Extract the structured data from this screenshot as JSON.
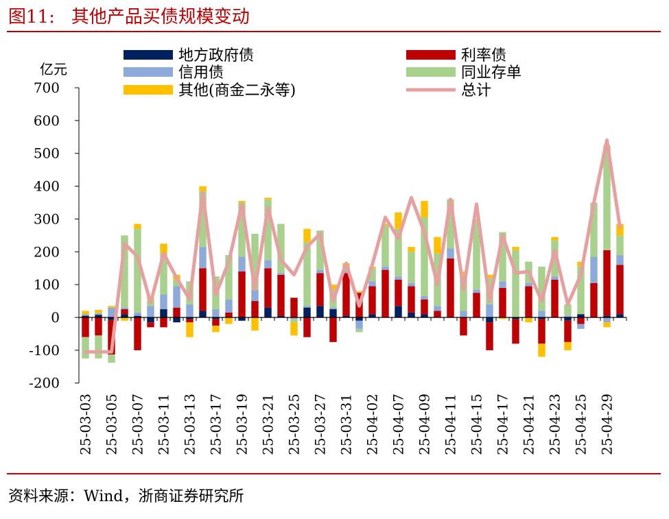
{
  "figure": {
    "number": "图11:",
    "title": "其他产品买债规模变动",
    "source": "资料来源：Wind，浙商证券研究所"
  },
  "chart_data": {
    "type": "bar",
    "stacked": true,
    "unit_label": "亿元",
    "ylim": [
      -200,
      700
    ],
    "yticks": [
      -200,
      -100,
      0,
      100,
      200,
      300,
      400,
      500,
      600,
      700
    ],
    "legend_placement": "top",
    "categories": [
      "25-03-03",
      "25-03-04",
      "25-03-05",
      "25-03-06",
      "25-03-07",
      "25-03-10",
      "25-03-11",
      "25-03-12",
      "25-03-13",
      "25-03-14",
      "25-03-17",
      "25-03-18",
      "25-03-19",
      "25-03-20",
      "25-03-21",
      "25-03-24",
      "25-03-25",
      "25-03-26",
      "25-03-27",
      "25-03-28",
      "25-03-31",
      "25-04-01",
      "25-04-02",
      "25-04-03",
      "25-04-07",
      "25-04-08",
      "25-04-09",
      "25-04-10",
      "25-04-11",
      "25-04-14",
      "25-04-15",
      "25-04-16",
      "25-04-17",
      "25-04-18",
      "25-04-21",
      "25-04-22",
      "25-04-23",
      "25-04-24",
      "25-04-25",
      "25-04-28",
      "25-04-29",
      "25-04-30"
    ],
    "shown_tick_labels": [
      "25-03-03",
      "25-03-05",
      "25-03-07",
      "25-03-11",
      "25-03-13",
      "25-03-17",
      "25-03-19",
      "25-03-21",
      "25-03-25",
      "25-03-27",
      "25-03-31",
      "25-04-02",
      "25-04-07",
      "25-04-09",
      "25-04-11",
      "25-04-15",
      "25-04-17",
      "25-04-21",
      "25-04-23",
      "25-04-25",
      "25-04-29"
    ],
    "series": [
      {
        "name": "地方政府债",
        "color": "#002060",
        "kind": "bar",
        "values": [
          5,
          8,
          -8,
          10,
          5,
          -15,
          25,
          -15,
          -5,
          20,
          -5,
          0,
          -10,
          0,
          30,
          5,
          0,
          30,
          35,
          25,
          5,
          -10,
          10,
          0,
          35,
          15,
          10,
          0,
          0,
          0,
          0,
          -15,
          0,
          -5,
          0,
          -5,
          0,
          -10,
          10,
          0,
          5,
          10
        ]
      },
      {
        "name": "利率债",
        "color": "#c00000",
        "kind": "bar",
        "values": [
          -60,
          -55,
          -105,
          15,
          -100,
          -15,
          -30,
          30,
          -10,
          130,
          -20,
          15,
          140,
          50,
          120,
          125,
          60,
          -60,
          100,
          -75,
          130,
          75,
          85,
          145,
          80,
          80,
          45,
          20,
          180,
          -55,
          75,
          -85,
          90,
          -75,
          95,
          -75,
          115,
          -65,
          -20,
          105,
          200,
          150
        ]
      },
      {
        "name": "信用债",
        "color": "#8eaadb",
        "kind": "bar",
        "values": [
          5,
          5,
          30,
          5,
          10,
          35,
          45,
          65,
          40,
          65,
          25,
          40,
          45,
          35,
          25,
          5,
          -5,
          5,
          10,
          5,
          5,
          -25,
          15,
          10,
          10,
          10,
          10,
          15,
          30,
          20,
          10,
          40,
          20,
          0,
          10,
          20,
          10,
          5,
          -15,
          80,
          -15,
          30
        ]
      },
      {
        "name": "同业存单",
        "color": "#a9d18e",
        "kind": "bar",
        "values": [
          -65,
          -70,
          -25,
          220,
          255,
          20,
          125,
          20,
          70,
          170,
          100,
          135,
          165,
          170,
          185,
          150,
          -10,
          195,
          120,
          55,
          15,
          -10,
          40,
          125,
          145,
          95,
          240,
          160,
          150,
          110,
          210,
          80,
          150,
          205,
          65,
          135,
          110,
          35,
          145,
          165,
          320,
          60
        ]
      },
      {
        "name": "其他(商金二永等)",
        "color": "#ffc000",
        "kind": "bar",
        "values": [
          10,
          10,
          5,
          -10,
          15,
          5,
          30,
          15,
          -45,
          15,
          -20,
          -20,
          5,
          -40,
          5,
          0,
          -40,
          40,
          0,
          15,
          10,
          5,
          5,
          5,
          50,
          15,
          50,
          50,
          0,
          10,
          5,
          10,
          -5,
          10,
          -15,
          -40,
          10,
          -25,
          15,
          0,
          -15,
          35
        ]
      },
      {
        "name": "总计",
        "color": "#e6a0a0",
        "kind": "line",
        "values": [
          -105,
          -105,
          -105,
          225,
          185,
          45,
          195,
          120,
          55,
          380,
          70,
          170,
          345,
          85,
          335,
          175,
          130,
          215,
          255,
          50,
          165,
          35,
          160,
          305,
          240,
          365,
          260,
          100,
          360,
          85,
          345,
          50,
          250,
          135,
          140,
          50,
          205,
          40,
          130,
          350,
          540,
          275
        ]
      }
    ]
  }
}
